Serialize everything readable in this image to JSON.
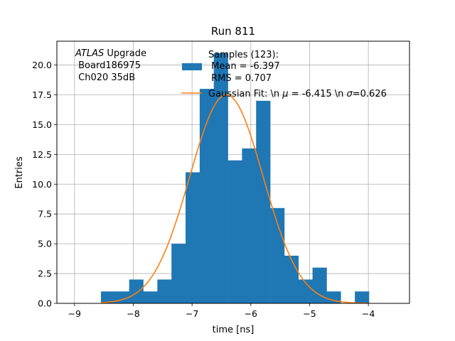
{
  "chart_data": {
    "type": "bar",
    "title": "Run 811",
    "xlabel": "time [ns]",
    "ylabel": "Entries",
    "xlim": [
      -9.3,
      -3.3
    ],
    "ylim": [
      0,
      22
    ],
    "grid": true,
    "x_ticks": [
      -9,
      -8,
      -7,
      -6,
      -5,
      -4
    ],
    "x_tick_labels": [
      "−9",
      "−8",
      "−7",
      "−6",
      "−5",
      "−4"
    ],
    "y_ticks": [
      0,
      2.5,
      5,
      7.5,
      10,
      12.5,
      15,
      17.5,
      20
    ],
    "y_tick_labels": [
      "0.0",
      "2.5",
      "5.0",
      "7.5",
      "10.0",
      "12.5",
      "15.0",
      "17.5",
      "20.0"
    ],
    "histogram": {
      "color": "#1f77b4",
      "bin_edges": [
        -8.55,
        -8.31,
        -8.07,
        -7.83,
        -7.59,
        -7.35,
        -7.11,
        -6.87,
        -6.63,
        -6.39,
        -6.15,
        -5.91,
        -5.67,
        -5.43,
        -5.19,
        -4.95,
        -4.71,
        -4.47,
        -4.23,
        -3.99
      ],
      "counts": [
        1,
        1,
        2,
        1,
        2,
        5,
        11,
        18,
        21,
        12,
        13,
        17,
        8,
        4,
        2,
        3,
        1,
        0,
        1
      ]
    },
    "fit": {
      "color": "#ff7f0e",
      "mu": -6.415,
      "sigma": 0.626,
      "amplitude": 17.5,
      "x_range": [
        -8.55,
        -3.99
      ]
    },
    "annotation": {
      "italic": "ATLAS",
      "rest": " Upgrade",
      "line2": " Board186975",
      "line3": " Ch020 35dB"
    },
    "legend": {
      "position": "upper-right",
      "hist_label_lines": [
        "Samples (123):",
        " Mean = -6.397",
        " RMS = 0.707"
      ],
      "fit_label_pre": "Gaussian Fit: \\n ",
      "fit_label_mu": "μ",
      "fit_label_mid": " = -6.415 \\n ",
      "fit_label_sigma": "σ",
      "fit_label_post": "=0.626"
    }
  }
}
